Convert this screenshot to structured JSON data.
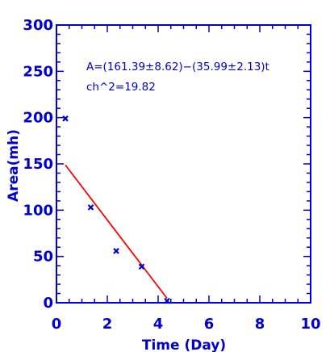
{
  "colors": {
    "axis": "#0000d0",
    "points": "#0000d0",
    "fit_line": "#ff0000",
    "annotation": "#0000d0",
    "background": "#ffffff"
  },
  "chart_data": {
    "type": "scatter",
    "xlabel": "Time (Day)",
    "ylabel": "Area(mh)",
    "xlim": [
      0,
      10
    ],
    "ylim": [
      0,
      300
    ],
    "x_ticks": [
      0,
      2,
      4,
      6,
      8,
      10
    ],
    "y_ticks": [
      0,
      50,
      100,
      150,
      200,
      250,
      300
    ],
    "grid": false,
    "points": [
      {
        "x": 0.35,
        "y": 199
      },
      {
        "x": 1.35,
        "y": 103
      },
      {
        "x": 2.35,
        "y": 56
      },
      {
        "x": 3.35,
        "y": 39
      },
      {
        "x": 4.35,
        "y": 2
      }
    ],
    "fit_line": {
      "x": [
        0.35,
        4.35
      ],
      "y": [
        148.8,
        4.8
      ]
    },
    "annotation": [
      "A=(161.39±8.62)−(35.99±2.13)t",
      "ch^2=19.82"
    ]
  }
}
